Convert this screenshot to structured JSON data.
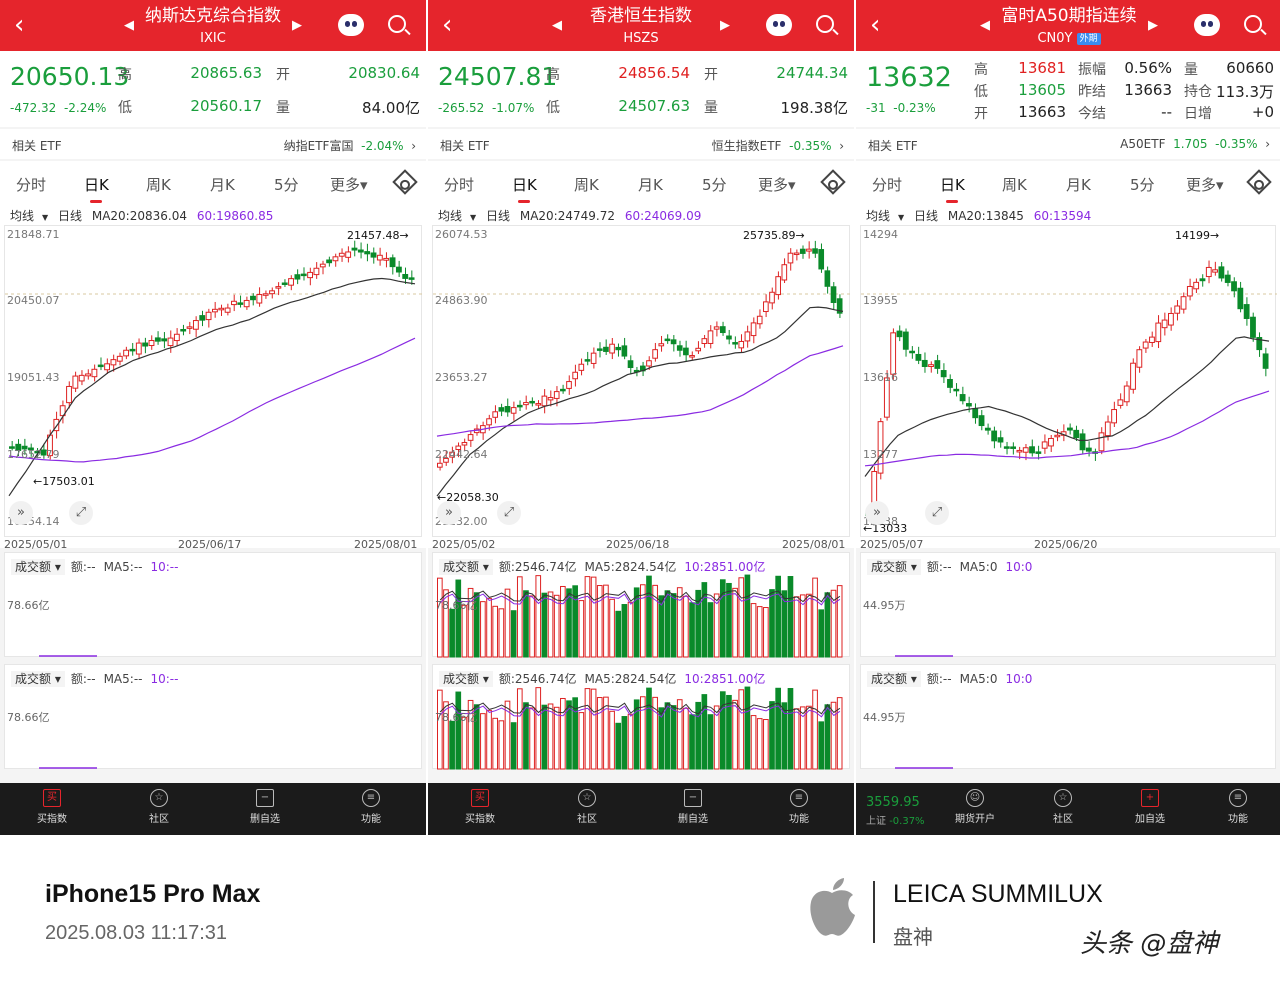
{
  "panels": [
    {
      "title": "纳斯达克综合指数",
      "code": "IXIC",
      "badge": "",
      "price": "20650.13",
      "change": "-472.32",
      "pct": "-2.24%",
      "high_label": "高",
      "high": "20865.63",
      "open_label": "开",
      "open": "20830.64",
      "low_label": "低",
      "low": "20560.17",
      "vol_label": "量",
      "vol": "84.00亿",
      "etf_label": "相关 ETF",
      "etf_name": "纳指ETF富国",
      "etf_change": "-2.04%",
      "tabs": [
        "分时",
        "日K",
        "周K",
        "月K",
        "5分",
        "更多▾"
      ],
      "ma_select": "均线",
      "ma_line": "日线",
      "ma20": "MA20:20836.04",
      "ma60": "60:19860.85",
      "y_labels": [
        "21848.71",
        "20450.07",
        "19051.43",
        "17652.79",
        "16254.14"
      ],
      "hi_mark": "21457.48→",
      "lo_mark": "←17503.01",
      "dates": [
        "2025/05/01",
        "2025/06/17",
        "2025/08/01"
      ],
      "vol_panels": [
        {
          "select": "成交额",
          "amt": "额:--",
          "ma5": "MA5:--",
          "ma10": "10:--",
          "scale": "78.66亿"
        },
        {
          "select": "成交额",
          "amt": "额:--",
          "ma5": "MA5:--",
          "ma10": "10:--",
          "scale": "78.66亿"
        }
      ],
      "bottom": [
        "买指数",
        "社区",
        "删自选",
        "功能"
      ]
    },
    {
      "title": "香港恒生指数",
      "code": "HSZS",
      "badge": "",
      "price": "24507.81",
      "change": "-265.52",
      "pct": "-1.07%",
      "high_label": "高",
      "high": "24856.54",
      "open_label": "开",
      "open": "24744.34",
      "low_label": "低",
      "low": "24507.63",
      "vol_label": "量",
      "vol": "198.38亿",
      "etf_label": "相关 ETF",
      "etf_name": "恒生指数ETF",
      "etf_change": "-0.35%",
      "tabs": [
        "分时",
        "日K",
        "周K",
        "月K",
        "5分",
        "更多▾"
      ],
      "ma_select": "均线",
      "ma_line": "日线",
      "ma20": "MA20:24749.72",
      "ma60": "60:24069.09",
      "y_labels": [
        "26074.53",
        "24863.90",
        "23653.27",
        "22442.64",
        "21232.00"
      ],
      "hi_mark": "25735.89→",
      "lo_mark": "←22058.30",
      "dates": [
        "2025/05/02",
        "2025/06/18",
        "2025/08/01"
      ],
      "vol_panels": [
        {
          "select": "成交额",
          "amt": "额:2546.74亿",
          "ma5": "MA5:2824.54亿",
          "ma10": "10:2851.00亿",
          "scale": "78.66亿"
        },
        {
          "select": "成交额",
          "amt": "额:2546.74亿",
          "ma5": "MA5:2824.54亿",
          "ma10": "10:2851.00亿",
          "scale": "78.66亿"
        }
      ],
      "bottom": [
        "买指数",
        "社区",
        "删自选",
        "功能"
      ]
    },
    {
      "title": "富时A50期指连续",
      "code": "CN0Y",
      "badge": "外期",
      "price": "13632",
      "change": "-31",
      "pct": "-0.23%",
      "grid": [
        [
          "高",
          "13681",
          "振幅",
          "0.56%",
          "量",
          "60660"
        ],
        [
          "低",
          "13605",
          "昨结",
          "13663",
          "持仓",
          "113.3万"
        ],
        [
          "开",
          "13663",
          "今结",
          "--",
          "日增",
          "+0"
        ]
      ],
      "etf_label": "相关 ETF",
      "etf_name": "A50ETF",
      "etf_price": "1.705",
      "etf_change": "-0.35%",
      "tabs": [
        "分时",
        "日K",
        "周K",
        "月K",
        "5分",
        "更多▾"
      ],
      "ma_select": "均线",
      "ma_line": "日线",
      "ma20": "MA20:13845",
      "ma60": "60:13594",
      "y_labels": [
        "14294",
        "13955",
        "13616",
        "13277",
        "12938"
      ],
      "hi_mark": "14199→",
      "lo_mark": "←13033",
      "dates": [
        "2025/05/07",
        "2025/06/20"
      ],
      "vol_panels": [
        {
          "select": "成交额",
          "amt": "额:--",
          "ma5": "MA5:0",
          "ma10": "10:0",
          "scale": "44.95万"
        },
        {
          "select": "成交额",
          "amt": "额:--",
          "ma5": "MA5:0",
          "ma10": "10:0",
          "scale": "44.95万"
        }
      ],
      "bottom_index": {
        "price": "3559.95",
        "name": "上证",
        "pct": "-0.37%"
      },
      "bottom": [
        "期货开户",
        "社区",
        "加自选",
        "功能"
      ]
    }
  ],
  "footer": {
    "model": "iPhone15 Pro Max",
    "datetime": "2025.08.03 11:17:31",
    "lens": "LEICA SUMMILUX",
    "lens_author": "盘神",
    "watermark": "头条 @盘神"
  },
  "colors": {
    "up": "#e02020",
    "down": "#1a9e3c",
    "header": "#e5252c",
    "ma20": "#333333",
    "ma60": "#8a2be2"
  }
}
